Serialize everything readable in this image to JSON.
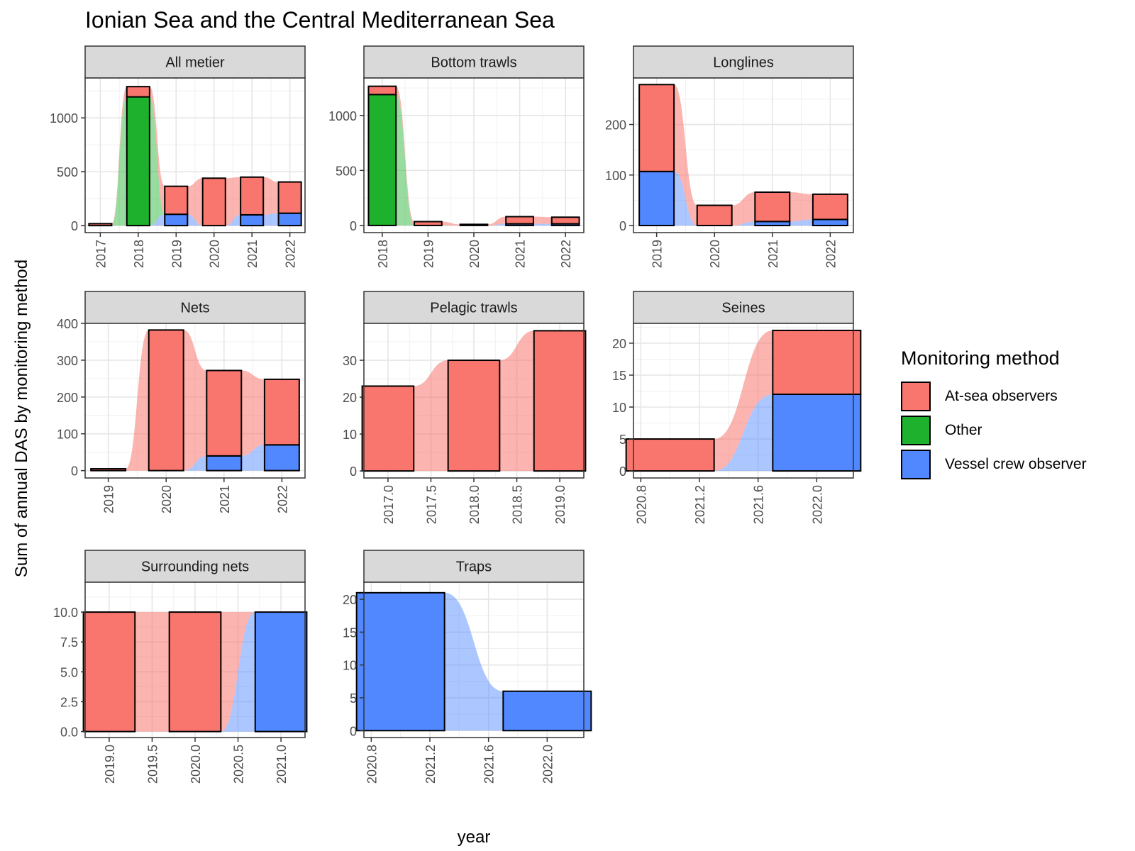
{
  "title": "Ionian Sea and the Central Mediterranean Sea",
  "legend": {
    "title": "Monitoring method",
    "items": [
      {
        "label": "At-sea observers",
        "color": "#F8766D"
      },
      {
        "label": "Other",
        "color": "#1DB12D"
      },
      {
        "label": "Vessel crew observer",
        "color": "#5288FF"
      }
    ]
  },
  "chart_data": {
    "type": "bar",
    "stacked": true,
    "title": "Ionian Sea and the Central Mediterranean Sea",
    "xlabel": "year",
    "ylabel": "Sum of annual DAS by monitoring method",
    "grid": true,
    "legend_position": "right",
    "facets": [
      {
        "name": "All metier",
        "x": [
          2017,
          2018,
          2019,
          2020,
          2021,
          2022
        ],
        "xticks": [
          "2017",
          "2018",
          "2019",
          "2020",
          "2021",
          "2022"
        ],
        "xlim": [
          2016.6,
          2022.4
        ],
        "ylim": [
          -65,
          1370
        ],
        "yticks": [
          0,
          500,
          1000
        ],
        "yticklabels": [
          "0",
          "500",
          "1000"
        ],
        "series": [
          {
            "name": "At-sea observers",
            "values": [
              18,
              95,
              260,
              440,
              350,
              290
            ]
          },
          {
            "name": "Other",
            "values": [
              0,
              1195,
              0,
              0,
              0,
              0
            ]
          },
          {
            "name": "Vessel crew observer",
            "values": [
              0,
              0,
              105,
              0,
              100,
              115
            ]
          }
        ]
      },
      {
        "name": "Bottom trawls",
        "x": [
          2018,
          2019,
          2020,
          2021,
          2022
        ],
        "xticks": [
          "2018",
          "2019",
          "2020",
          "2021",
          "2022"
        ],
        "xlim": [
          2017.6,
          2022.4
        ],
        "ylim": [
          -65,
          1340
        ],
        "yticks": [
          0,
          500,
          1000
        ],
        "yticklabels": [
          "0",
          "500",
          "1000"
        ],
        "series": [
          {
            "name": "At-sea observers",
            "values": [
              75,
              35,
              10,
              65,
              60
            ]
          },
          {
            "name": "Other",
            "values": [
              1190,
              0,
              0,
              0,
              0
            ]
          },
          {
            "name": "Vessel crew observer",
            "values": [
              0,
              0,
              0,
              15,
              15
            ]
          }
        ]
      },
      {
        "name": "Longlines",
        "x": [
          2019,
          2020,
          2021,
          2022
        ],
        "xticks": [
          "2019",
          "2020",
          "2021",
          "2022"
        ],
        "xlim": [
          2018.6,
          2022.4
        ],
        "ylim": [
          -14,
          292
        ],
        "yticks": [
          0,
          100,
          200
        ],
        "yticklabels": [
          "0",
          "100",
          "200"
        ],
        "series": [
          {
            "name": "At-sea observers",
            "values": [
              172,
              40,
              58,
              50
            ]
          },
          {
            "name": "Other",
            "values": [
              0,
              0,
              0,
              0
            ]
          },
          {
            "name": "Vessel crew observer",
            "values": [
              107,
              0,
              8,
              12
            ]
          }
        ]
      },
      {
        "name": "Nets",
        "x": [
          2019,
          2020,
          2021,
          2022
        ],
        "xticks": [
          "2019",
          "2020",
          "2021",
          "2022"
        ],
        "xlim": [
          2018.6,
          2022.4
        ],
        "ylim": [
          -20,
          400
        ],
        "yticks": [
          0,
          100,
          200,
          300,
          400
        ],
        "yticklabels": [
          "0",
          "100",
          "200",
          "300",
          "400"
        ],
        "series": [
          {
            "name": "At-sea observers",
            "values": [
              5,
              382,
              232,
              178
            ]
          },
          {
            "name": "Other",
            "values": [
              0,
              0,
              0,
              0
            ]
          },
          {
            "name": "Vessel crew observer",
            "values": [
              0,
              0,
              40,
              70
            ]
          }
        ]
      },
      {
        "name": "Pelagic trawls",
        "x": [
          2017,
          2018,
          2019
        ],
        "xticks": [
          "2017.0",
          "2017.5",
          "2018.0",
          "2018.5",
          "2019.0"
        ],
        "xlim": [
          2016.72,
          2019.28
        ],
        "ylim": [
          -1.9,
          40
        ],
        "yticks": [
          0,
          10,
          20,
          30
        ],
        "yticklabels": [
          "0",
          "10",
          "20",
          "30"
        ],
        "series": [
          {
            "name": "At-sea observers",
            "values": [
              23,
              30,
              38
            ]
          },
          {
            "name": "Other",
            "values": [
              0,
              0,
              0
            ]
          },
          {
            "name": "Vessel crew observer",
            "values": [
              0,
              0,
              0
            ]
          }
        ]
      },
      {
        "name": "Seines",
        "x": [
          2021,
          2022
        ],
        "xticks": [
          "2020.8",
          "2021.2",
          "2021.6",
          "2022.0"
        ],
        "xlim": [
          2020.75,
          2022.25
        ],
        "ylim": [
          -1.1,
          23.1
        ],
        "yticks": [
          0,
          5,
          10,
          15,
          20
        ],
        "yticklabels": [
          "0",
          "5",
          "10",
          "15",
          "20"
        ],
        "series": [
          {
            "name": "At-sea observers",
            "values": [
              5,
              10
            ]
          },
          {
            "name": "Other",
            "values": [
              0,
              0
            ]
          },
          {
            "name": "Vessel crew observer",
            "values": [
              0,
              12
            ]
          }
        ]
      },
      {
        "name": "Surrounding nets",
        "x": [
          2019,
          2020,
          2021
        ],
        "xticks": [
          "2019.0",
          "2019.5",
          "2020.0",
          "2020.5",
          "2021.0"
        ],
        "xlim": [
          2018.72,
          2021.28
        ],
        "ylim": [
          -0.5,
          12.5
        ],
        "yticks": [
          0,
          2.5,
          5,
          7.5,
          10
        ],
        "yticklabels": [
          "0.0",
          "2.5",
          "5.0",
          "7.5",
          "10.0"
        ],
        "series": [
          {
            "name": "At-sea observers",
            "values": [
              10,
              10,
              0
            ]
          },
          {
            "name": "Other",
            "values": [
              0,
              0,
              0
            ]
          },
          {
            "name": "Vessel crew observer",
            "values": [
              0,
              0,
              10
            ]
          }
        ]
      },
      {
        "name": "Traps",
        "x": [
          2021,
          2022
        ],
        "xticks": [
          "2020.8",
          "2021.2",
          "2021.6",
          "2022.0"
        ],
        "xlim": [
          2020.75,
          2022.25
        ],
        "ylim": [
          -1.05,
          22.6
        ],
        "yticks": [
          0,
          5,
          10,
          15,
          20
        ],
        "yticklabels": [
          "0",
          "5",
          "10",
          "15",
          "20"
        ],
        "series": [
          {
            "name": "At-sea observers",
            "values": [
              0,
              0
            ]
          },
          {
            "name": "Other",
            "values": [
              0,
              0
            ]
          },
          {
            "name": "Vessel crew observer",
            "values": [
              21,
              6
            ]
          }
        ]
      }
    ]
  }
}
